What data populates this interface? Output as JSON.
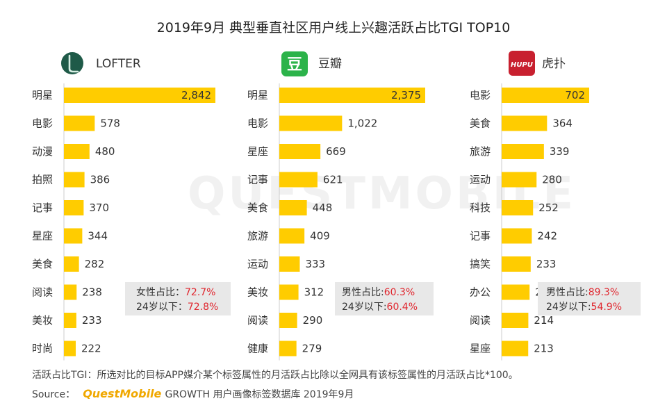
{
  "title": "2019年9月 典型垂直社区用户线上兴趣活跃占比TGI TOP10",
  "watermark": "QUESTMOBILE",
  "colors": {
    "bar": "#ffcc00",
    "accent_red": "#e0262e",
    "note_bg": "#e8e8e8",
    "axis": "#cccccc"
  },
  "panels": [
    {
      "app": "LOFTER",
      "icon": "lofter-logo-icon",
      "note_lines": [
        {
          "label": "女性占比：",
          "value": "72.7%"
        },
        {
          "label": "24岁以下：",
          "value": "72.8%"
        }
      ]
    },
    {
      "app": "豆瓣",
      "icon": "douban-logo-icon",
      "logo_text": "豆",
      "note_lines": [
        {
          "label": "男性占比:",
          "value": "60.3%"
        },
        {
          "label": "24岁以下:",
          "value": "60.4%"
        }
      ]
    },
    {
      "app": "虎扑",
      "icon": "hupu-logo-icon",
      "logo_text": "HUPU",
      "note_lines": [
        {
          "label": "男性占比:",
          "value": "89.3%"
        },
        {
          "label": "24岁以下:",
          "value": "54.9%"
        }
      ]
    }
  ],
  "chart_data": [
    {
      "type": "bar",
      "orientation": "horizontal",
      "app": "LOFTER",
      "categories": [
        "明星",
        "电影",
        "动漫",
        "拍照",
        "记事",
        "星座",
        "美食",
        "阅读",
        "美妆",
        "时尚"
      ],
      "values": [
        2842,
        578,
        480,
        386,
        370,
        344,
        282,
        238,
        233,
        222
      ],
      "labels": [
        "2,842",
        "578",
        "480",
        "386",
        "370",
        "344",
        "282",
        "238",
        "233",
        "222"
      ]
    },
    {
      "type": "bar",
      "orientation": "horizontal",
      "app": "豆瓣",
      "categories": [
        "明星",
        "电影",
        "星座",
        "记事",
        "美食",
        "旅游",
        "运动",
        "美妆",
        "阅读",
        "健康"
      ],
      "values": [
        2375,
        1022,
        669,
        621,
        448,
        409,
        333,
        312,
        290,
        279
      ],
      "labels": [
        "2,375",
        "1,022",
        "669",
        "621",
        "448",
        "409",
        "333",
        "312",
        "290",
        "279"
      ]
    },
    {
      "type": "bar",
      "orientation": "horizontal",
      "app": "虎扑",
      "categories": [
        "电影",
        "美食",
        "旅游",
        "运动",
        "科技",
        "记事",
        "搞笑",
        "办公",
        "阅读",
        "星座"
      ],
      "values": [
        702,
        364,
        339,
        280,
        252,
        242,
        233,
        224,
        214,
        213
      ],
      "labels": [
        "702",
        "364",
        "339",
        "280",
        "252",
        "242",
        "233",
        "224",
        "214",
        "213"
      ]
    }
  ],
  "footer": {
    "definition": "活跃占比TGI：所选对比的目标APP媒介某个标签属性的月活跃占比除以全网具有该标签属性的月活跃占比*100。",
    "source_label": "Source：",
    "source_brand": "QuestMobile",
    "source_rest": "GROWTH 用户画像标签数据库 2019年9月"
  }
}
